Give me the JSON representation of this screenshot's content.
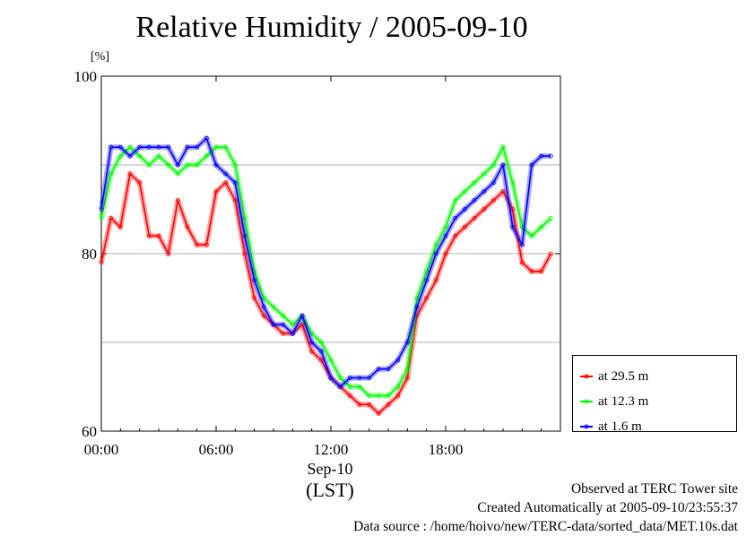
{
  "title": "Relative Humidity / 2005-09-10",
  "unit_label": "[%]",
  "x_center_label": "Sep-10",
  "x_unit_label": "(LST)",
  "footer": {
    "line1": "Observed at TERC Tower site",
    "line2": "Created Automatically at 2005-09-10/23:55:37",
    "line3": "Data source : /home/hoivo/new/TERC-data/sorted_data/MET.10s.dat"
  },
  "chart_data": {
    "type": "line",
    "title": "Relative Humidity / 2005-09-10",
    "xlabel": "(LST)",
    "ylabel": "[%]",
    "xlim": [
      0,
      24
    ],
    "ylim": [
      60,
      100
    ],
    "x_ticks": [
      {
        "value": 0,
        "label": "00:00"
      },
      {
        "value": 6,
        "label": "06:00"
      },
      {
        "value": 12,
        "label": "12:00"
      },
      {
        "value": 18,
        "label": "18:00"
      }
    ],
    "y_ticks": [
      {
        "value": 60,
        "label": "60"
      },
      {
        "value": 80,
        "label": "80"
      },
      {
        "value": 100,
        "label": "100"
      }
    ],
    "gridlines_y": [
      70,
      80,
      90
    ],
    "legend_position": "right",
    "x": [
      0,
      0.5,
      1,
      1.5,
      2,
      2.5,
      3,
      3.5,
      4,
      4.5,
      5,
      5.5,
      6,
      6.5,
      7,
      7.5,
      8,
      8.5,
      9,
      9.5,
      10,
      10.5,
      11,
      11.5,
      12,
      12.5,
      13,
      13.5,
      14,
      14.5,
      15,
      15.5,
      16,
      16.5,
      17,
      17.5,
      18,
      18.5,
      19,
      19.5,
      20,
      20.5,
      21,
      21.5,
      22,
      22.5,
      23,
      23.5
    ],
    "series": [
      {
        "name": "at 29.5 m",
        "color": "#ff0000",
        "values": [
          79,
          84,
          83,
          89,
          88,
          82,
          82,
          80,
          86,
          83,
          81,
          81,
          87,
          88,
          86,
          80,
          75,
          73,
          72,
          71,
          71,
          72,
          69,
          68,
          66,
          65,
          64,
          63,
          63,
          62,
          63,
          64,
          66,
          73,
          75,
          77,
          80,
          82,
          83,
          84,
          85,
          86,
          87,
          85,
          79,
          78,
          78,
          80
        ]
      },
      {
        "name": "at 12.3 m",
        "color": "#00ff00",
        "values": [
          84,
          89,
          91,
          92,
          91,
          90,
          91,
          90,
          89,
          90,
          90,
          91,
          92,
          92,
          90,
          84,
          78,
          75,
          74,
          73,
          72,
          73,
          71,
          70,
          68,
          66,
          65,
          65,
          64,
          64,
          64,
          65,
          67,
          75,
          78,
          81,
          83,
          86,
          87,
          88,
          89,
          90,
          92,
          88,
          83,
          82,
          83,
          84
        ]
      },
      {
        "name": "at 1.6 m",
        "color": "#0000ff",
        "values": [
          85,
          92,
          92,
          91,
          92,
          92,
          92,
          92,
          90,
          92,
          92,
          93,
          90,
          89,
          88,
          82,
          77,
          74,
          72,
          72,
          71,
          73,
          70,
          69,
          66,
          65,
          66,
          66,
          66,
          67,
          67,
          68,
          70,
          74,
          77,
          80,
          82,
          84,
          85,
          86,
          87,
          88,
          90,
          83,
          81,
          90,
          91,
          91
        ]
      }
    ]
  }
}
